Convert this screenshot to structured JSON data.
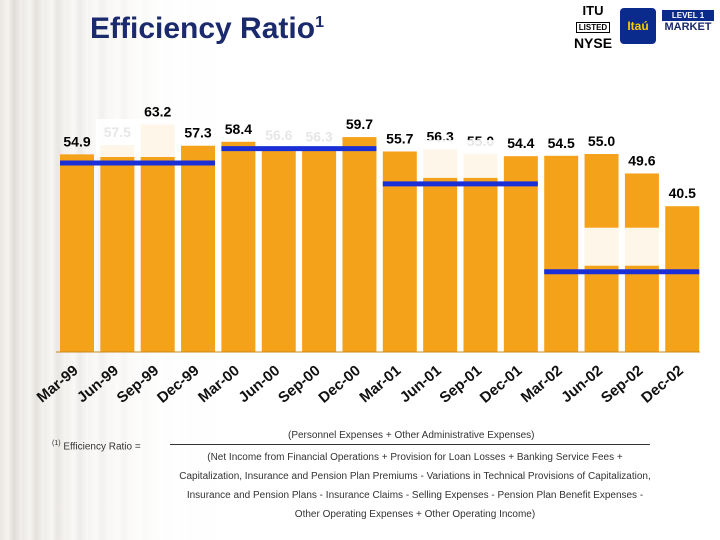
{
  "title": {
    "text": "Efficiency Ratio",
    "superscript": "1"
  },
  "logos": {
    "itu": {
      "line1": "ITU",
      "line2": "LISTED",
      "line3": "NYSE"
    },
    "itau": {
      "text": "Itaú"
    },
    "market": {
      "line1": "",
      "line2": "LEVEL 1",
      "line3": "MARKET"
    }
  },
  "chart_data": {
    "type": "bar",
    "categories": [
      "Mar-99",
      "Jun-99",
      "Sep-99",
      "Dec-99",
      "Mar-00",
      "Jun-00",
      "Sep-00",
      "Dec-00",
      "Mar-01",
      "Jun-01",
      "Sep-01",
      "Dec-01",
      "Mar-02",
      "Jun-02",
      "Sep-02",
      "Dec-02"
    ],
    "values": [
      54.9,
      57.5,
      63.2,
      57.3,
      58.4,
      56.6,
      56.3,
      59.7,
      55.7,
      56.3,
      55.0,
      54.4,
      54.5,
      55.0,
      49.6,
      40.5
    ],
    "value_labels": [
      "54.9",
      "57.5",
      "63.2",
      "57.3",
      "58.4",
      "56.6",
      "56.3",
      "59.7",
      "55.7",
      "56.3",
      "55.0",
      "54.4",
      "54.5",
      "55.0",
      "49.6",
      "40.5"
    ],
    "bar_color": "#f5a21b",
    "ylim": [
      0,
      70
    ],
    "annual_averages": [
      {
        "from": "Mar-99",
        "to": "Dec-99",
        "value": 52.5
      },
      {
        "from": "Mar-00",
        "to": "Dec-00",
        "value": 56.5
      },
      {
        "from": "Mar-01",
        "to": "Dec-01",
        "value": 46.7
      },
      {
        "from": "Mar-02",
        "to": "Dec-02",
        "value": 22.3
      }
    ],
    "average_line_color": "#1a2fd6",
    "grid": false,
    "legend": "none"
  },
  "footnote": {
    "marker": "(1)",
    "label": "Efficiency Ratio =",
    "numerator": "(Personnel Expenses + Other Administrative Expenses)",
    "denominator_lines": [
      "(Net Income from Financial Operations + Provision for Loan Losses + Banking Service Fees +",
      "Capitalization, Insurance and Pension Plan Premiums - Variations in Technical Provisions of Capitalization,",
      "Insurance and Pension Plans - Insurance Claims - Selling Expenses - Pension Plan Benefit Expenses -",
      "Other Operating Expenses + Other Operating Income)"
    ]
  }
}
